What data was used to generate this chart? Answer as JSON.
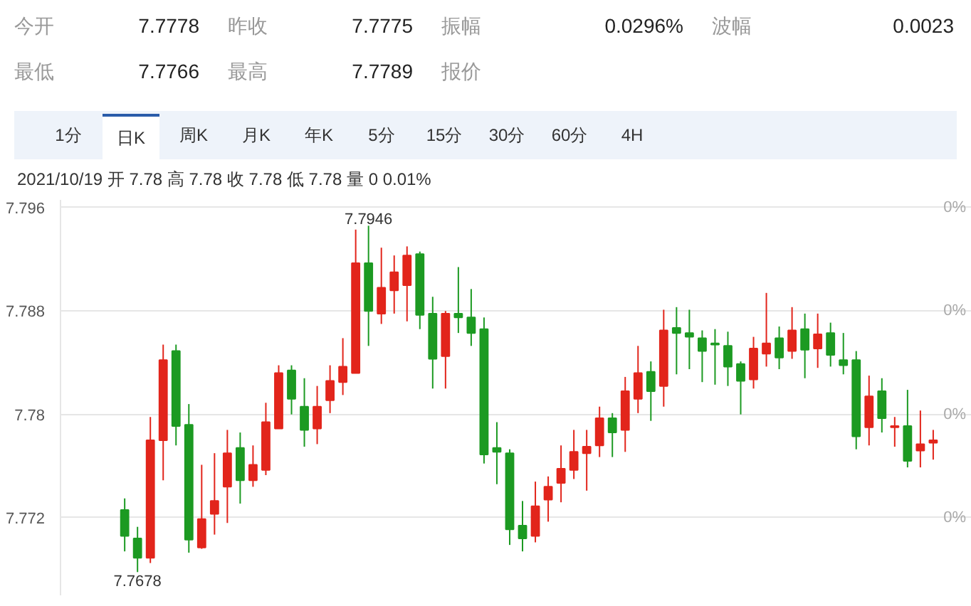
{
  "chart_data": {
    "type": "candlestick",
    "subtitle": "2021/10/19 开 7.78 高 7.78 收 7.78 低 7.78 量 0 0.01%",
    "annotations": [
      "今开",
      "7.7778",
      "昨收",
      "7.7775",
      "振幅",
      "0.0296%",
      "波幅",
      "0.0023",
      "最低",
      "7.7766",
      "最高",
      "7.7789",
      "报价",
      "1分",
      "日K",
      "周K",
      "月K",
      "年K",
      "5分",
      "15分",
      "30分",
      "60分",
      "4H",
      "0%",
      "0%",
      "0%",
      "0%",
      {
        "text": "7.7946",
        "y": 7.7946
      },
      {
        "text": "7.7678",
        "y": 7.7678
      }
    ],
    "categories": [
      null,
      null,
      null,
      null,
      null,
      null,
      null,
      null,
      null,
      null,
      null,
      null,
      null,
      null,
      null,
      null,
      null,
      null,
      null,
      null,
      null,
      null,
      null,
      null,
      null,
      null,
      null,
      null,
      null,
      null,
      null,
      null,
      null,
      null,
      null,
      null,
      null,
      null,
      null,
      null,
      null,
      null,
      null,
      null,
      null,
      null,
      null,
      null,
      null,
      null,
      null,
      null,
      null,
      null,
      null,
      null,
      null,
      null,
      null,
      null,
      null,
      null,
      null,
      null
    ],
    "colors": [
      "#1c9a22",
      "#1c9a22",
      "#e2251b",
      "#e2251b",
      "#1c9a22",
      "#1c9a22",
      "#e2251b",
      "#e2251b",
      "#e2251b",
      "#1c9a22",
      "#e2251b",
      "#e2251b",
      "#e2251b",
      "#1c9a22",
      "#1c9a22",
      "#e2251b",
      "#e2251b",
      "#e2251b",
      "#e2251b",
      "#1c9a22",
      "#e2251b",
      "#e2251b",
      "#e2251b",
      "#1c9a22",
      "#1c9a22",
      "#e2251b",
      "#1c9a22",
      "#1c9a22",
      "#1c9a22",
      "#1c9a22",
      "#1c9a22",
      "#1c9a22",
      "#e2251b",
      "#e2251b",
      "#e2251b",
      "#e2251b",
      "#e2251b",
      "#e2251b",
      "#1c9a22",
      "#e2251b",
      "#e2251b",
      "#1c9a22",
      "#e2251b",
      "#1c9a22",
      "#1c9a22",
      "#1c9a22",
      "#1c9a22",
      "#1c9a22",
      "#1c9a22",
      "#e2251b",
      "#e2251b",
      "#1c9a22",
      "#e2251b",
      "#1c9a22",
      "#e2251b",
      "#1c9a22",
      "#1c9a22",
      "#1c9a22",
      "#e2251b",
      "#1c9a22",
      "#e2251b",
      "#1c9a22",
      "#e2251b",
      "#e2251b"
    ],
    "ohlc": [
      [
        7.7726,
        7.7735,
        7.7694,
        7.7706
      ],
      [
        7.7704,
        7.7713,
        7.7678,
        7.7689
      ],
      [
        7.7689,
        7.7798,
        7.7685,
        7.778
      ],
      [
        7.778,
        7.7854,
        7.7749,
        7.7842
      ],
      [
        7.7849,
        7.7854,
        7.7776,
        7.7791
      ],
      [
        7.7792,
        7.7808,
        7.7693,
        7.7703
      ],
      [
        7.7697,
        7.7761,
        7.7696,
        7.7719
      ],
      [
        7.7723,
        7.777,
        7.7707,
        7.7733
      ],
      [
        7.7744,
        7.7788,
        7.7716,
        7.777
      ],
      [
        7.7774,
        7.7786,
        7.7731,
        7.7749
      ],
      [
        7.7749,
        7.7776,
        7.7744,
        7.7761
      ],
      [
        7.7757,
        7.7809,
        7.7753,
        7.7794
      ],
      [
        7.7789,
        7.7838,
        7.7789,
        7.7832
      ],
      [
        7.7834,
        7.7838,
        7.78,
        7.7812
      ],
      [
        7.7806,
        7.7828,
        7.7775,
        7.7788
      ],
      [
        7.7789,
        7.7822,
        7.7777,
        7.7806
      ],
      [
        7.7811,
        7.7838,
        7.7801,
        7.7826
      ],
      [
        7.7825,
        7.7859,
        7.7815,
        7.7837
      ],
      [
        7.7832,
        7.7943,
        7.7832,
        7.7917
      ],
      [
        7.7917,
        7.7946,
        7.7853,
        7.788
      ],
      [
        7.7878,
        7.7929,
        7.787,
        7.7898
      ],
      [
        7.7896,
        7.7923,
        7.7878,
        7.791
      ],
      [
        7.79,
        7.793,
        7.7872,
        7.7923
      ],
      [
        7.7924,
        7.7926,
        7.7866,
        7.7877
      ],
      [
        7.7878,
        7.7891,
        7.782,
        7.7843
      ],
      [
        7.7845,
        7.788,
        7.782,
        7.7878
      ],
      [
        7.7878,
        7.7914,
        7.7863,
        7.7875
      ],
      [
        7.7875,
        7.7897,
        7.7853,
        7.7863
      ],
      [
        7.7866,
        7.7875,
        7.7762,
        7.7769
      ],
      [
        7.7774,
        7.7794,
        7.7746,
        7.7771
      ],
      [
        7.777,
        7.7773,
        7.7699,
        7.7711
      ],
      [
        7.7714,
        7.7733,
        7.7694,
        7.7704
      ],
      [
        7.7706,
        7.7748,
        7.7701,
        7.7729
      ],
      [
        7.7734,
        7.7752,
        7.7717,
        7.7744
      ],
      [
        7.7747,
        7.7776,
        7.7732,
        7.7758
      ],
      [
        7.7757,
        7.7788,
        7.775,
        7.7771
      ],
      [
        7.777,
        7.7788,
        7.7741,
        7.7775
      ],
      [
        7.7776,
        7.7806,
        7.7767,
        7.7797
      ],
      [
        7.7797,
        7.7801,
        7.7767,
        7.7786
      ],
      [
        7.7788,
        7.7829,
        7.7771,
        7.7818
      ],
      [
        7.7812,
        7.7853,
        7.7801,
        7.7832
      ],
      [
        7.7833,
        7.7841,
        7.7795,
        7.7818
      ],
      [
        7.7822,
        7.7881,
        7.7806,
        7.7865
      ],
      [
        7.7867,
        7.7883,
        7.7831,
        7.7863
      ],
      [
        7.7863,
        7.7881,
        7.7835,
        7.786
      ],
      [
        7.7859,
        7.7865,
        7.7825,
        7.7849
      ],
      [
        7.7855,
        7.7866,
        7.7823,
        7.7854
      ],
      [
        7.7853,
        7.7864,
        7.7822,
        7.7837
      ],
      [
        7.7839,
        7.7841,
        7.78,
        7.7826
      ],
      [
        7.7827,
        7.786,
        7.782,
        7.7851
      ],
      [
        7.7847,
        7.7894,
        7.7837,
        7.7855
      ],
      [
        7.7859,
        7.7868,
        7.7835,
        7.7844
      ],
      [
        7.7849,
        7.7883,
        7.7843,
        7.7865
      ],
      [
        7.7866,
        7.7878,
        7.7828,
        7.785
      ],
      [
        7.7851,
        7.7878,
        7.7836,
        7.7862
      ],
      [
        7.7863,
        7.7871,
        7.7837,
        7.7846
      ],
      [
        7.7842,
        7.7863,
        7.7831,
        7.7838
      ],
      [
        7.7842,
        7.7849,
        7.7773,
        7.7783
      ],
      [
        7.779,
        7.783,
        7.7776,
        7.7814
      ],
      [
        7.7818,
        7.7828,
        7.7786,
        7.7797
      ],
      [
        7.779,
        7.7798,
        7.7775,
        7.7791
      ],
      [
        7.7791,
        7.7819,
        7.7759,
        7.7764
      ],
      [
        7.7772,
        7.7803,
        7.7759,
        7.7777
      ],
      [
        7.7778,
        7.7788,
        7.7765,
        7.778
      ]
    ],
    "ylim": [
      7.766,
      7.7966
    ],
    "yticks": [
      7.772,
      7.78,
      7.788,
      7.796
    ],
    "grid": "y"
  }
}
